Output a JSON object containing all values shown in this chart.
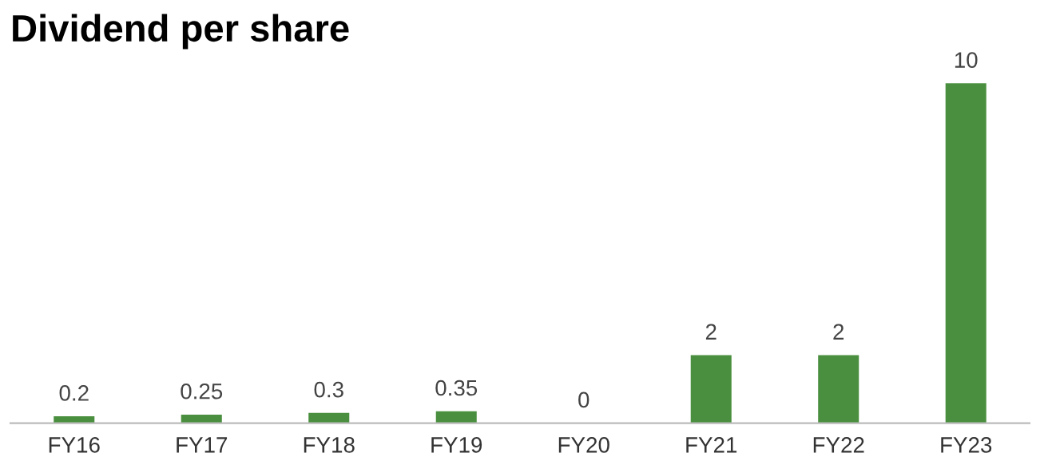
{
  "chart_data": {
    "type": "bar",
    "title": "Dividend per share",
    "categories": [
      "FY16",
      "FY17",
      "FY18",
      "FY19",
      "FY20",
      "FY21",
      "FY22",
      "FY23"
    ],
    "values": [
      0.2,
      0.25,
      0.3,
      0.35,
      0,
      2,
      2,
      10
    ],
    "color": "#4a8f3f",
    "data_labels": true,
    "grid": false,
    "legend": false
  }
}
